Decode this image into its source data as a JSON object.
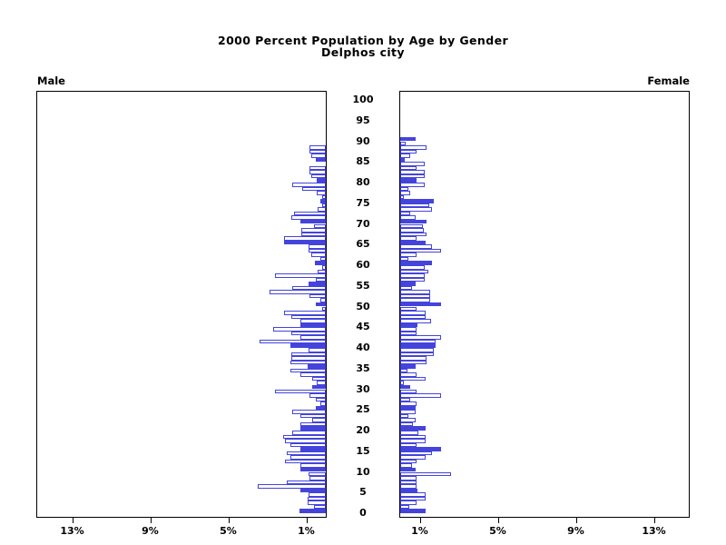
{
  "title": {
    "line1": "2000 Percent Population by Age by Gender",
    "line2": "Delphos city"
  },
  "labels": {
    "male": "Male",
    "female": "Female"
  },
  "colors": {
    "bar_blue": "#4444dd",
    "bar_empty_fill": "#ffffff",
    "axis_black": "#000000",
    "background": "#ffffff"
  },
  "chart_data": {
    "type": "bar",
    "subtype": "population_pyramid",
    "title": "2000 Percent Population by Age by Gender",
    "subtitle": "Delphos city",
    "unit": "percent of total population, single year of age",
    "age_min": 0,
    "age_max": 92,
    "ages": [
      0,
      1,
      2,
      3,
      4,
      5,
      6,
      7,
      8,
      9,
      10,
      11,
      12,
      13,
      14,
      15,
      16,
      17,
      18,
      19,
      20,
      21,
      22,
      23,
      24,
      25,
      26,
      27,
      28,
      29,
      30,
      31,
      32,
      33,
      34,
      35,
      36,
      37,
      38,
      39,
      40,
      41,
      42,
      43,
      44,
      45,
      46,
      47,
      48,
      49,
      50,
      51,
      52,
      53,
      54,
      55,
      56,
      57,
      58,
      59,
      60,
      61,
      62,
      63,
      64,
      65,
      66,
      67,
      68,
      69,
      70,
      71,
      72,
      73,
      74,
      75,
      76,
      77,
      78,
      79,
      80,
      81,
      82,
      83,
      84,
      85,
      86,
      87,
      88,
      89,
      90,
      91,
      92
    ],
    "series": [
      {
        "name": "Male",
        "side": "left",
        "values": [
          1.35,
          0.6,
          0.95,
          0.95,
          0.9,
          1.3,
          3.5,
          2.0,
          0.85,
          0.9,
          1.3,
          1.3,
          2.1,
          1.8,
          2.0,
          1.3,
          1.8,
          2.1,
          2.2,
          1.7,
          1.3,
          1.3,
          0.7,
          1.3,
          1.7,
          0.5,
          0.3,
          0.5,
          0.85,
          2.6,
          0.7,
          0.45,
          0.7,
          1.3,
          1.8,
          0.95,
          1.8,
          1.75,
          1.75,
          0.9,
          1.8,
          3.4,
          1.3,
          1.75,
          2.7,
          1.3,
          1.3,
          1.75,
          2.15,
          0.2,
          0.5,
          0.3,
          0.85,
          2.9,
          1.7,
          0.9,
          0.5,
          2.6,
          0.4,
          0.2,
          0.55,
          0.3,
          0.75,
          0.9,
          0.9,
          2.15,
          2.15,
          1.25,
          1.25,
          0.6,
          1.3,
          1.75,
          1.65,
          0.4,
          0.2,
          0.3,
          0.2,
          0.45,
          1.2,
          1.7,
          0.45,
          0.75,
          0.85,
          0.85,
          0,
          0.5,
          0.75,
          0.85,
          0.85,
          0,
          0,
          0,
          0
        ]
      },
      {
        "name": "Female",
        "side": "right",
        "values": [
          1.3,
          0.45,
          0.85,
          1.3,
          1.3,
          0.9,
          0.85,
          0.85,
          0.85,
          2.6,
          0.8,
          0.6,
          0.85,
          1.3,
          1.65,
          2.1,
          0.85,
          1.3,
          1.3,
          0.95,
          1.3,
          0.65,
          0.8,
          0.4,
          0.8,
          0.8,
          0.85,
          0.5,
          2.1,
          0.85,
          0.5,
          0.2,
          1.3,
          0.85,
          0.35,
          0.8,
          1.35,
          1.35,
          1.7,
          1.7,
          1.8,
          1.8,
          2.1,
          0.85,
          0.85,
          0.9,
          1.6,
          1.3,
          1.3,
          0.85,
          2.1,
          1.55,
          1.55,
          1.55,
          0.6,
          0.8,
          1.25,
          1.25,
          1.45,
          1.25,
          1.65,
          0.4,
          0.85,
          2.1,
          1.65,
          1.3,
          0.85,
          1.35,
          1.2,
          1.15,
          1.35,
          0.8,
          0.5,
          1.65,
          1.5,
          1.7,
          0.2,
          0.5,
          0.4,
          1.25,
          0.85,
          1.25,
          1.25,
          0.85,
          1.25,
          0.25,
          0.5,
          0.85,
          1.35,
          0.3,
          0.8,
          0,
          0
        ]
      }
    ],
    "highlight_every": 5,
    "x_axis": {
      "tick_values_male_left_to_right": [
        13,
        9,
        5,
        1
      ],
      "tick_values_female_left_to_right": [
        1,
        5,
        9,
        13
      ],
      "tick_suffix": "%",
      "max_percent": 15,
      "grid": false
    },
    "y_axis": {
      "age_labels": [
        0,
        5,
        10,
        15,
        20,
        25,
        30,
        35,
        40,
        45,
        50,
        55,
        60,
        65,
        70,
        75,
        80,
        85,
        90,
        95,
        100
      ],
      "label_position": "center-between-panels"
    },
    "legend": "none"
  }
}
